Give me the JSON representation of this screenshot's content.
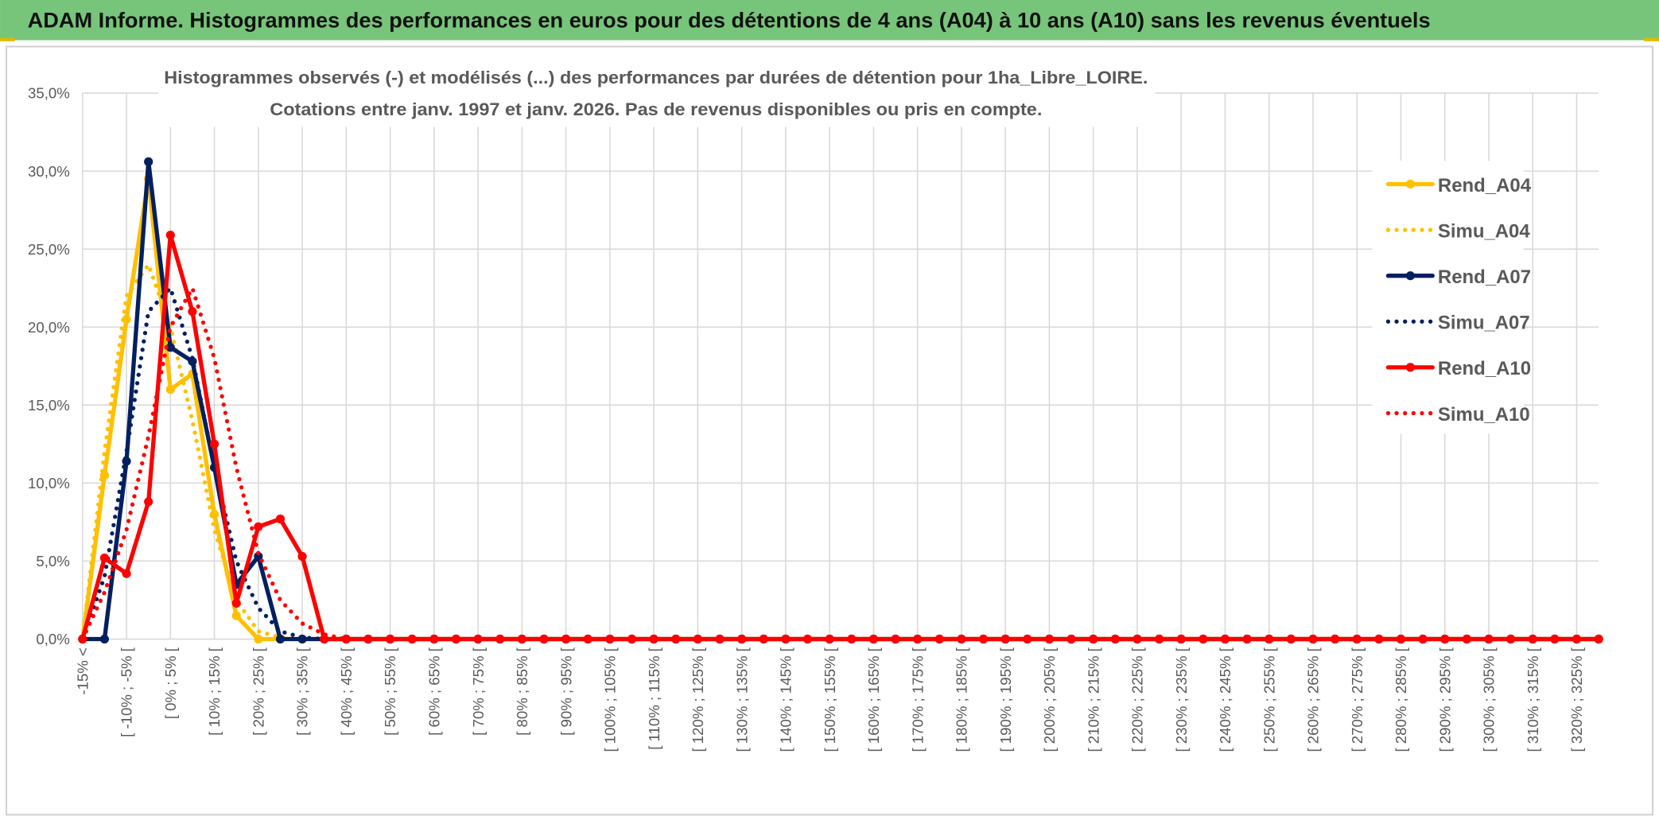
{
  "header": {
    "title": "ADAM Informe. Histogrammes des performances en euros pour des détentions de 4 ans (A04) à 10 ans (A10) sans les revenus éventuels"
  },
  "chart_data": {
    "type": "line",
    "title": "Histogrammes observés (-) et modélisés (...) des performances par durées de détention pour 1ha_Libre_LOIRE.",
    "subtitle": "Cotations entre janv. 1997 et janv. 2026. Pas de revenus disponibles ou pris en compte.",
    "categories": [
      "-15% <",
      null,
      "[ -10% ; -5% [",
      null,
      "[ 0% ; 5% [",
      null,
      "[ 10% ; 15% [",
      null,
      "[ 20% ; 25% [",
      null,
      "[ 30% ; 35% [",
      null,
      "[ 40% ; 45% [",
      null,
      "[ 50% ; 55% [",
      null,
      "[ 60% ; 65% [",
      null,
      "[ 70% ; 75% [",
      null,
      "[ 80% ; 85% [",
      null,
      "[ 90% ; 95% [",
      null,
      "[ 100% ; 105% [",
      null,
      "[ 110% ; 115% [",
      null,
      "[ 120% ; 125% [",
      null,
      "[ 130% ; 135% [",
      null,
      "[ 140% ; 145% [",
      null,
      "[ 150% ; 155% [",
      null,
      "[ 160% ; 165% [",
      null,
      "[ 170% ; 175% [",
      null,
      "[ 180% ; 185% [",
      null,
      "[ 190% ; 195% [",
      null,
      "[ 200% ; 205% [",
      null,
      "[ 210% ; 215% [",
      null,
      "[ 220% ; 225% [",
      null,
      "[ 230% ; 235% [",
      null,
      "[ 240% ; 245% [",
      null,
      "[ 250% ; 255% [",
      null,
      "[ 260% ; 265% [",
      null,
      "[ 270% ; 275% [",
      null,
      "[ 280% ; 285% [",
      null,
      "[ 290% ; 295% [",
      null,
      "[ 300% ; 305% [",
      null,
      "[ 310% ; 315% [",
      null,
      "[ 320% ; 325% [",
      null
    ],
    "series": [
      {
        "name": "Rend_A04",
        "color": "#FFC000",
        "style": "solid",
        "marker": true,
        "values": [
          0,
          10.5,
          20.5,
          29.5,
          16,
          17,
          8,
          1.5,
          0,
          0,
          0,
          0,
          0,
          0,
          0,
          0,
          0,
          0,
          0,
          0,
          0,
          0,
          0,
          0,
          0,
          0,
          0,
          0,
          0,
          0,
          0,
          0,
          0,
          0,
          0,
          0,
          0,
          0,
          0,
          0,
          0,
          0,
          0,
          0,
          0,
          0,
          0,
          0,
          0,
          0,
          0,
          0,
          0,
          0,
          0,
          0,
          0,
          0,
          0,
          0,
          0,
          0,
          0,
          0,
          0,
          0,
          0,
          0,
          0,
          0
        ]
      },
      {
        "name": "Simu_A04",
        "color": "#FFC000",
        "style": "dotted",
        "marker": false,
        "values": [
          0,
          12,
          22,
          24,
          20,
          14,
          7,
          2.5,
          0.5,
          0.1,
          0,
          0,
          0,
          0,
          0,
          0,
          0,
          0,
          0,
          0,
          0,
          0,
          0,
          0,
          0,
          0,
          0,
          0,
          0,
          0,
          0,
          0,
          0,
          0,
          0,
          0,
          0,
          0,
          0,
          0,
          0,
          0,
          0,
          0,
          0,
          0,
          0,
          0,
          0,
          0,
          0,
          0,
          0,
          0,
          0,
          0,
          0,
          0,
          0,
          0,
          0,
          0,
          0,
          0,
          0,
          0,
          0,
          0,
          0,
          0
        ]
      },
      {
        "name": "Rend_A07",
        "color": "#002060",
        "style": "solid",
        "marker": true,
        "values": [
          0,
          0,
          11.4,
          30.6,
          18.7,
          17.8,
          11,
          3.5,
          5.3,
          0,
          0,
          0,
          0,
          0,
          0,
          0,
          0,
          0,
          0,
          0,
          0,
          0,
          0,
          0,
          0,
          0,
          0,
          0,
          0,
          0,
          0,
          0,
          0,
          0,
          0,
          0,
          0,
          0,
          0,
          0,
          0,
          0,
          0,
          0,
          0,
          0,
          0,
          0,
          0,
          0,
          0,
          0,
          0,
          0,
          0,
          0,
          0,
          0,
          0,
          0,
          0,
          0,
          0,
          0,
          0,
          0,
          0,
          0,
          0,
          0
        ]
      },
      {
        "name": "Simu_A07",
        "color": "#002060",
        "style": "dotted",
        "marker": false,
        "values": [
          0,
          4,
          12,
          21,
          22.5,
          18,
          11,
          5,
          2,
          0.5,
          0.1,
          0,
          0,
          0,
          0,
          0,
          0,
          0,
          0,
          0,
          0,
          0,
          0,
          0,
          0,
          0,
          0,
          0,
          0,
          0,
          0,
          0,
          0,
          0,
          0,
          0,
          0,
          0,
          0,
          0,
          0,
          0,
          0,
          0,
          0,
          0,
          0,
          0,
          0,
          0,
          0,
          0,
          0,
          0,
          0,
          0,
          0,
          0,
          0,
          0,
          0,
          0,
          0,
          0,
          0,
          0,
          0,
          0,
          0,
          0
        ]
      },
      {
        "name": "Rend_A10",
        "color": "#FF0000",
        "style": "solid",
        "marker": true,
        "values": [
          0,
          5.2,
          4.2,
          8.8,
          25.9,
          21,
          12.5,
          2.3,
          7.2,
          7.7,
          5.3,
          0,
          0,
          0,
          0,
          0,
          0,
          0,
          0,
          0,
          0,
          0,
          0,
          0,
          0,
          0,
          0,
          0,
          0,
          0,
          0,
          0,
          0,
          0,
          0,
          0,
          0,
          0,
          0,
          0,
          0,
          0,
          0,
          0,
          0,
          0,
          0,
          0,
          0,
          0,
          0,
          0,
          0,
          0,
          0,
          0,
          0,
          0,
          0,
          0,
          0,
          0,
          0,
          0,
          0,
          0,
          0,
          0,
          0,
          0
        ]
      },
      {
        "name": "Simu_A10",
        "color": "#FF0000",
        "style": "dotted",
        "marker": false,
        "values": [
          0,
          3,
          7,
          13,
          20,
          22.5,
          18,
          11,
          5.5,
          2.5,
          1,
          0.3,
          0,
          0,
          0,
          0,
          0,
          0,
          0,
          0,
          0,
          0,
          0,
          0,
          0,
          0,
          0,
          0,
          0,
          0,
          0,
          0,
          0,
          0,
          0,
          0,
          0,
          0,
          0,
          0,
          0,
          0,
          0,
          0,
          0,
          0,
          0,
          0,
          0,
          0,
          0,
          0,
          0,
          0,
          0,
          0,
          0,
          0,
          0,
          0,
          0,
          0,
          0,
          0,
          0,
          0,
          0,
          0,
          0,
          0
        ]
      }
    ],
    "ylim": [
      0,
      35
    ],
    "yticks": [
      {
        "value": 0,
        "label": "0,0%"
      },
      {
        "value": 5,
        "label": "5,0%"
      },
      {
        "value": 10,
        "label": "10,0%"
      },
      {
        "value": 15,
        "label": "15,0%"
      },
      {
        "value": 20,
        "label": "20,0%"
      },
      {
        "value": 25,
        "label": "25,0%"
      },
      {
        "value": 30,
        "label": "30,0%"
      },
      {
        "value": 35,
        "label": "35,0%"
      }
    ],
    "grid": true,
    "legend": "right"
  }
}
